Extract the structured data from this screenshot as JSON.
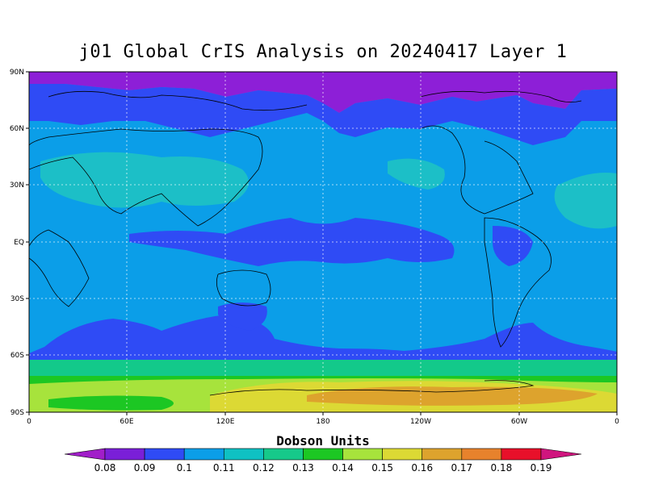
{
  "title": "j01 Global CrIS Analysis on 20240417 Layer 1",
  "map": {
    "lat_labels": [
      "90N",
      "60N",
      "30N",
      "EQ",
      "30S",
      "60S",
      "90S"
    ],
    "lon_labels": [
      "0",
      "60E",
      "120E",
      "180",
      "120W",
      "60W",
      "0"
    ],
    "regions": {
      "arctic": "#8d1fd7",
      "tropical_low": "#2f4bf5",
      "midlat": "#0b9ee8",
      "subtrop_high": "#1cbfc7",
      "southern_band": "#13c98a",
      "antarctic_ring": "#1cc723",
      "antarctic_mid": "#a7e33c",
      "antarctic_inner": "#dcd934",
      "antarctic_core": "#dda32d"
    }
  },
  "colorbar": {
    "title": "Dobson Units",
    "labels": [
      "0.08",
      "0.09",
      "0.1",
      "0.11",
      "0.12",
      "0.13",
      "0.14",
      "0.15",
      "0.16",
      "0.17",
      "0.18",
      "0.19"
    ],
    "colors": [
      "#a11ec9",
      "#7a1fd8",
      "#2f4bf5",
      "#0b9ee8",
      "#0fc1c3",
      "#16c98a",
      "#1cc723",
      "#a7e33c",
      "#dcd934",
      "#dda32d",
      "#e7822c",
      "#e8102a",
      "#d0157e"
    ]
  }
}
